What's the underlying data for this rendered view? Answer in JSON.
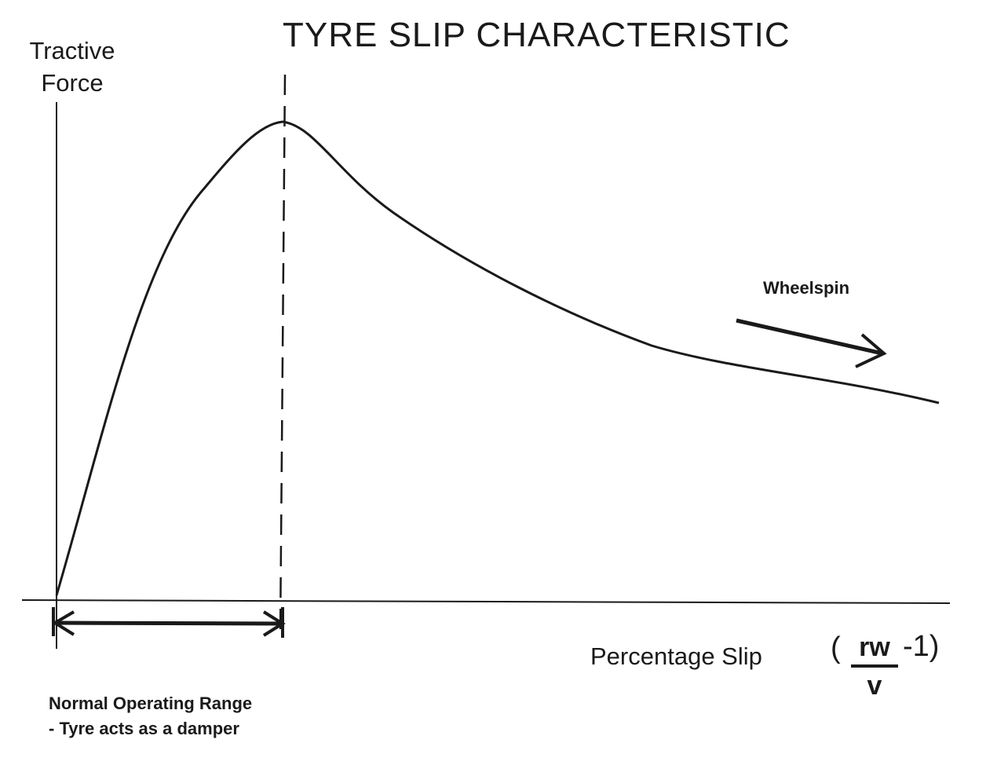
{
  "title": "TYRE SLIP CHARACTERISTIC",
  "y_axis_label": [
    "Tractive",
    "Force"
  ],
  "x_axis_label": "Percentage Slip",
  "formula": {
    "open": "(",
    "numerator": "rw",
    "denominator": "v",
    "suffix": "-1)"
  },
  "annotation_wheelspin": "Wheelspin",
  "annotation_range": [
    "Normal Operating Range",
    "- Tyre acts as a damper"
  ],
  "colors": {
    "ink": "#1a1a1a",
    "background": "#ffffff"
  }
}
